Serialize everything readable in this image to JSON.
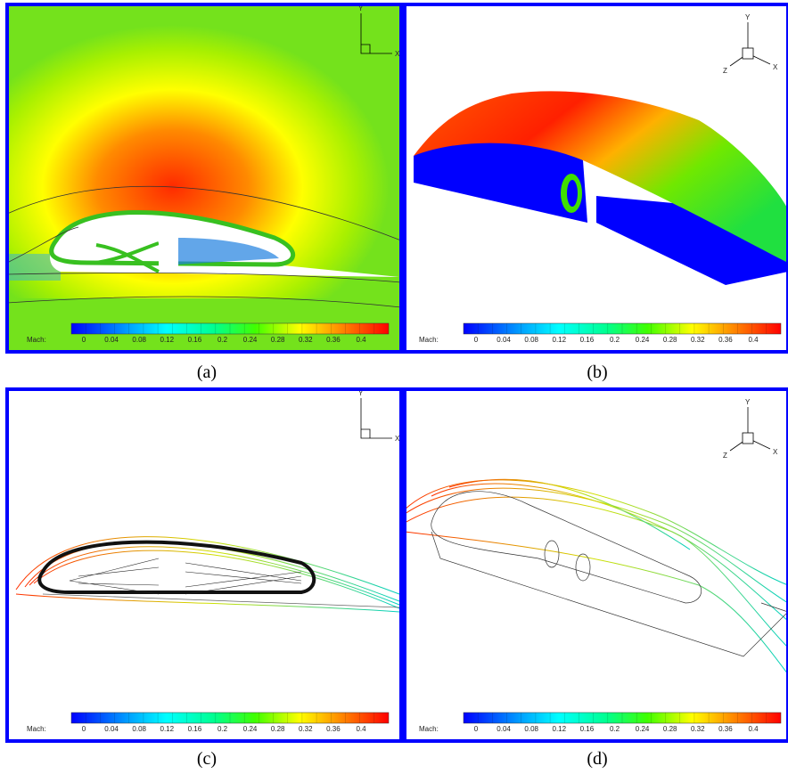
{
  "panels": [
    {
      "label": "(a)",
      "axes": {
        "x": "X",
        "y": "Y"
      },
      "colorbar": {
        "title": "Mach:",
        "ticks": [
          0,
          0.04,
          0.08,
          0.12,
          0.16,
          0.2,
          0.24,
          0.28,
          0.32,
          0.36,
          0.4
        ]
      }
    },
    {
      "label": "(b)",
      "axes": {
        "x": "X",
        "y": "Y",
        "z": "Z"
      },
      "colorbar": {
        "title": "Mach:",
        "ticks": [
          0,
          0.04,
          0.08,
          0.12,
          0.16,
          0.2,
          0.24,
          0.28,
          0.32,
          0.36,
          0.4
        ]
      }
    },
    {
      "label": "(c)",
      "axes": {
        "x": "X",
        "y": "Y"
      },
      "colorbar": {
        "title": "Mach:",
        "ticks": [
          0,
          0.04,
          0.08,
          0.12,
          0.16,
          0.2,
          0.24,
          0.28,
          0.32,
          0.36,
          0.4
        ]
      }
    },
    {
      "label": "(d)",
      "axes": {
        "x": "X",
        "y": "Y",
        "z": "Z"
      },
      "colorbar": {
        "title": "Mach:",
        "ticks": [
          0,
          0.04,
          0.08,
          0.12,
          0.16,
          0.2,
          0.24,
          0.28,
          0.32,
          0.36,
          0.4
        ]
      }
    }
  ]
}
